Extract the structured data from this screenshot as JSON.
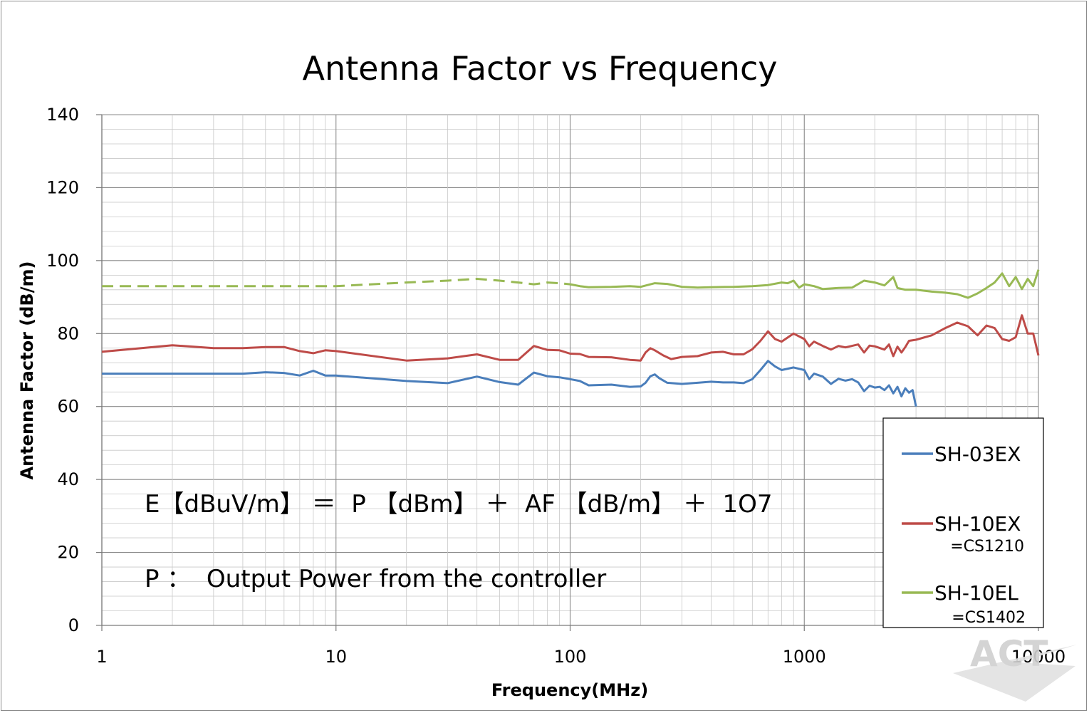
{
  "chart_data": {
    "type": "line",
    "title": "Antenna Factor  vs  Frequency",
    "xlabel": "Frequency(MHz)",
    "ylabel": "Antenna Factor (dB/m)",
    "x_scale": "log",
    "xlim": [
      1,
      10000
    ],
    "ylim": [
      0,
      140
    ],
    "x_ticks": [
      "1",
      "10",
      "100",
      "1000",
      "10000"
    ],
    "y_ticks": [
      "0",
      "20",
      "40",
      "60",
      "80",
      "100",
      "120",
      "140"
    ],
    "grid": true,
    "legend_position": "right",
    "series": [
      {
        "name": "SH-03EX",
        "color": "#4a7ebb",
        "points": [
          [
            1,
            69
          ],
          [
            2,
            69
          ],
          [
            3,
            69
          ],
          [
            4,
            69
          ],
          [
            5,
            69.4
          ],
          [
            6,
            69.2
          ],
          [
            7,
            68.5
          ],
          [
            8,
            69.8
          ],
          [
            9,
            68.5
          ],
          [
            10,
            68.5
          ],
          [
            20,
            67
          ],
          [
            30,
            66.4
          ],
          [
            40,
            68.2
          ],
          [
            50,
            66.7
          ],
          [
            60,
            66
          ],
          [
            70,
            69.3
          ],
          [
            80,
            68.3
          ],
          [
            90,
            68
          ],
          [
            100,
            67.5
          ],
          [
            110,
            67
          ],
          [
            120,
            65.8
          ],
          [
            150,
            66
          ],
          [
            180,
            65.4
          ],
          [
            200,
            65.5
          ],
          [
            210,
            66.5
          ],
          [
            220,
            68.3
          ],
          [
            230,
            68.8
          ],
          [
            240,
            67.8
          ],
          [
            260,
            66.5
          ],
          [
            300,
            66.2
          ],
          [
            350,
            66.5
          ],
          [
            400,
            66.8
          ],
          [
            450,
            66.6
          ],
          [
            500,
            66.6
          ],
          [
            550,
            66.4
          ],
          [
            600,
            67.5
          ],
          [
            650,
            70
          ],
          [
            700,
            72.5
          ],
          [
            750,
            71
          ],
          [
            800,
            70
          ],
          [
            900,
            70.7
          ],
          [
            1000,
            70
          ],
          [
            1050,
            67.5
          ],
          [
            1100,
            69
          ],
          [
            1200,
            68.2
          ],
          [
            1300,
            66.2
          ],
          [
            1400,
            67.6
          ],
          [
            1500,
            67.1
          ],
          [
            1600,
            67.5
          ],
          [
            1700,
            66.6
          ],
          [
            1800,
            64.2
          ],
          [
            1900,
            65.7
          ],
          [
            2000,
            65.2
          ],
          [
            2100,
            65.4
          ],
          [
            2200,
            64.5
          ],
          [
            2300,
            65.8
          ],
          [
            2400,
            63.6
          ],
          [
            2500,
            65.4
          ],
          [
            2600,
            62.8
          ],
          [
            2700,
            65
          ],
          [
            2800,
            63.8
          ],
          [
            2900,
            64.5
          ],
          [
            3000,
            60
          ]
        ]
      },
      {
        "name": "SH-10EX",
        "subname": "=CS1210",
        "color": "#be4b48",
        "points": [
          [
            1,
            75
          ],
          [
            2,
            76.8
          ],
          [
            3,
            76
          ],
          [
            4,
            76
          ],
          [
            5,
            76.3
          ],
          [
            6,
            76.3
          ],
          [
            7,
            75.2
          ],
          [
            8,
            74.6
          ],
          [
            9,
            75.4
          ],
          [
            10,
            75.2
          ],
          [
            20,
            72.6
          ],
          [
            30,
            73.2
          ],
          [
            40,
            74.3
          ],
          [
            50,
            72.8
          ],
          [
            60,
            72.8
          ],
          [
            70,
            76.6
          ],
          [
            80,
            75.5
          ],
          [
            90,
            75.4
          ],
          [
            100,
            74.5
          ],
          [
            110,
            74.4
          ],
          [
            120,
            73.6
          ],
          [
            150,
            73.5
          ],
          [
            180,
            72.8
          ],
          [
            200,
            72.6
          ],
          [
            210,
            74.8
          ],
          [
            220,
            76
          ],
          [
            230,
            75.4
          ],
          [
            250,
            74
          ],
          [
            270,
            73
          ],
          [
            300,
            73.6
          ],
          [
            350,
            73.8
          ],
          [
            400,
            74.8
          ],
          [
            450,
            75
          ],
          [
            500,
            74.3
          ],
          [
            550,
            74.3
          ],
          [
            600,
            75.7
          ],
          [
            650,
            78
          ],
          [
            700,
            80.6
          ],
          [
            750,
            78.5
          ],
          [
            800,
            77.8
          ],
          [
            900,
            80
          ],
          [
            1000,
            78.5
          ],
          [
            1050,
            76.5
          ],
          [
            1100,
            77.8
          ],
          [
            1200,
            76.6
          ],
          [
            1300,
            75.6
          ],
          [
            1400,
            76.6
          ],
          [
            1500,
            76.2
          ],
          [
            1700,
            77
          ],
          [
            1800,
            74.8
          ],
          [
            1900,
            76.7
          ],
          [
            2000,
            76.5
          ],
          [
            2200,
            75.6
          ],
          [
            2300,
            77
          ],
          [
            2400,
            73.8
          ],
          [
            2500,
            76.4
          ],
          [
            2600,
            74.8
          ],
          [
            2700,
            76.3
          ],
          [
            2800,
            78
          ],
          [
            3000,
            78.3
          ],
          [
            3500,
            79.5
          ],
          [
            4000,
            81.5
          ],
          [
            4500,
            83
          ],
          [
            5000,
            82
          ],
          [
            5500,
            79.5
          ],
          [
            6000,
            82.2
          ],
          [
            6500,
            81.5
          ],
          [
            7000,
            78.5
          ],
          [
            7500,
            78
          ],
          [
            8000,
            79
          ],
          [
            8500,
            85
          ],
          [
            9000,
            80
          ],
          [
            9500,
            80
          ],
          [
            10000,
            74
          ]
        ]
      },
      {
        "name": "SH-10EL",
        "subname": "=CS1402",
        "color": "#98b954",
        "dashed_below": 100,
        "points": [
          [
            1,
            93
          ],
          [
            2,
            93
          ],
          [
            3,
            93
          ],
          [
            4,
            93
          ],
          [
            5,
            93
          ],
          [
            8,
            93
          ],
          [
            10,
            93
          ],
          [
            20,
            94
          ],
          [
            30,
            94.5
          ],
          [
            40,
            95
          ],
          [
            50,
            94.5
          ],
          [
            60,
            94
          ],
          [
            70,
            93.5
          ],
          [
            80,
            94
          ],
          [
            90,
            93.8
          ],
          [
            100,
            93.5
          ],
          [
            110,
            93
          ],
          [
            120,
            92.7
          ],
          [
            150,
            92.8
          ],
          [
            180,
            93
          ],
          [
            200,
            92.8
          ],
          [
            230,
            93.8
          ],
          [
            260,
            93.6
          ],
          [
            300,
            92.8
          ],
          [
            350,
            92.6
          ],
          [
            400,
            92.7
          ],
          [
            500,
            92.8
          ],
          [
            600,
            93
          ],
          [
            700,
            93.3
          ],
          [
            800,
            94
          ],
          [
            850,
            93.8
          ],
          [
            900,
            94.5
          ],
          [
            950,
            92.6
          ],
          [
            1000,
            93.5
          ],
          [
            1100,
            93
          ],
          [
            1200,
            92.2
          ],
          [
            1400,
            92.5
          ],
          [
            1600,
            92.6
          ],
          [
            1800,
            94.5
          ],
          [
            2000,
            94
          ],
          [
            2200,
            93.2
          ],
          [
            2400,
            95.5
          ],
          [
            2500,
            92.5
          ],
          [
            2700,
            92
          ],
          [
            3000,
            92
          ],
          [
            3500,
            91.5
          ],
          [
            4000,
            91.2
          ],
          [
            4500,
            90.8
          ],
          [
            5000,
            89.8
          ],
          [
            5500,
            91
          ],
          [
            6000,
            92.5
          ],
          [
            6500,
            94
          ],
          [
            7000,
            96.5
          ],
          [
            7500,
            93
          ],
          [
            8000,
            95.5
          ],
          [
            8500,
            92.2
          ],
          [
            9000,
            95
          ],
          [
            9500,
            93
          ],
          [
            10000,
            97.5
          ]
        ]
      }
    ],
    "annotations": [
      "E【dBuV/m】 ＝  P 【dBm】 ＋  AF 【dB/m】 ＋  1O7",
      "P ：  Output Power from the controller"
    ]
  },
  "logo": {
    "text": "ACT"
  }
}
